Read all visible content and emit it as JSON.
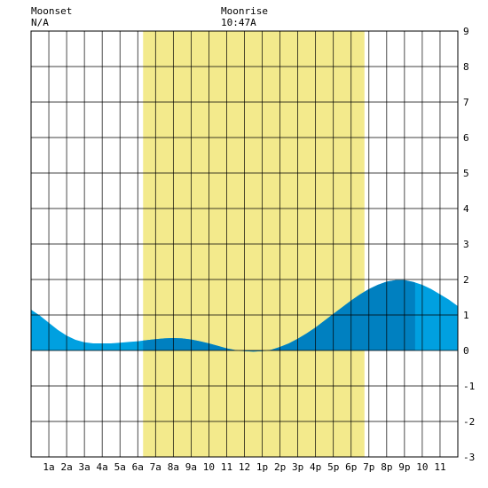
{
  "header": {
    "moonset_label": "Moonset",
    "moonset_value": "N/A",
    "moonrise_label": "Moonrise",
    "moonrise_value": "10:47A"
  },
  "colors": {
    "background": "#ffffff",
    "daylight": "#f3ea8c",
    "water_day": "#0080c0",
    "water_night": "#00a0e0",
    "grid": "#000000"
  },
  "chart_data": {
    "type": "area",
    "x_unit": "hour",
    "xlim": [
      0,
      24
    ],
    "ylim": [
      -3,
      9
    ],
    "grid": true,
    "x_tick_positions": [
      1,
      2,
      3,
      4,
      5,
      6,
      7,
      8,
      9,
      10,
      11,
      12,
      13,
      14,
      15,
      16,
      17,
      18,
      19,
      20,
      21,
      22,
      23
    ],
    "x_tick_labels": [
      "1a",
      "2a",
      "3a",
      "4a",
      "5a",
      "6a",
      "7a",
      "8a",
      "9a",
      "10",
      "11",
      "12",
      "1p",
      "2p",
      "3p",
      "4p",
      "5p",
      "6p",
      "7p",
      "8p",
      "9p",
      "10",
      "11"
    ],
    "y_ticks": [
      -3,
      -2,
      -1,
      0,
      1,
      2,
      3,
      4,
      5,
      6,
      7,
      8,
      9
    ],
    "daylight": {
      "start": 6.3,
      "end": 18.75
    },
    "moonrise_hour": 10.78,
    "series": [
      {
        "x": [
          0,
          0.5,
          1,
          1.5,
          2,
          2.5,
          3,
          3.5,
          4,
          4.5,
          5,
          5.5,
          6,
          6.5,
          7,
          7.5,
          8,
          8.5,
          9,
          9.5,
          10,
          10.5,
          11,
          11.5,
          12,
          12.5,
          13,
          13.5,
          14,
          14.5,
          15,
          15.5,
          16,
          16.5,
          17,
          17.5,
          18,
          18.5,
          19,
          19.5,
          20,
          20.5,
          21,
          21.5,
          22,
          22.5,
          23,
          23.5,
          24
        ],
        "y": [
          1.15,
          0.98,
          0.78,
          0.58,
          0.42,
          0.3,
          0.23,
          0.2,
          0.2,
          0.2,
          0.22,
          0.24,
          0.26,
          0.29,
          0.32,
          0.34,
          0.35,
          0.34,
          0.31,
          0.26,
          0.2,
          0.13,
          0.06,
          0.01,
          -0.02,
          -0.03,
          -0.02,
          0.02,
          0.1,
          0.2,
          0.33,
          0.48,
          0.65,
          0.84,
          1.03,
          1.22,
          1.41,
          1.58,
          1.73,
          1.85,
          1.94,
          1.98,
          1.98,
          1.93,
          1.85,
          1.73,
          1.58,
          1.43,
          1.25
        ]
      }
    ],
    "night_fill_from": 21.6
  }
}
